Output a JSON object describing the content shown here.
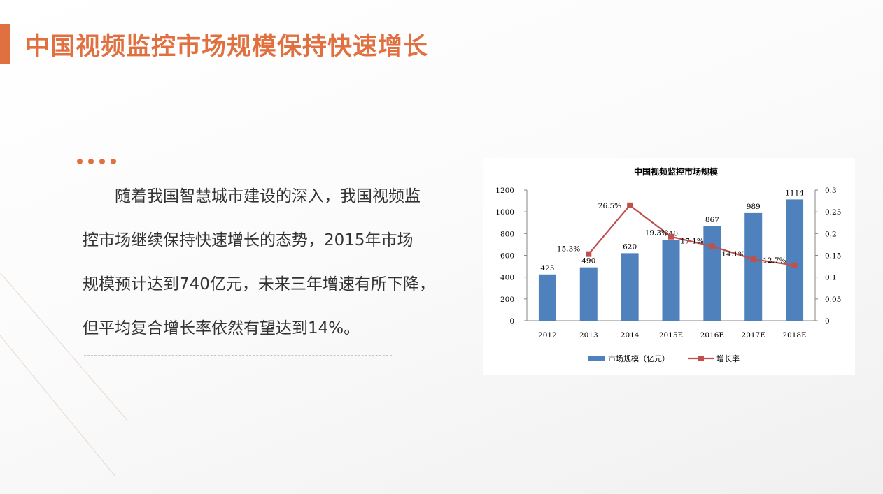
{
  "slide": {
    "title": "中国视频监控市场规模保持快速增长",
    "body_lines": [
      "随着我国智慧城市建设的深入，我国视频监",
      "控市场继续保持快速增长的态势，2015年市场",
      "规模预计达到740亿元，未来三年增速有所下降，",
      "但平均复合增长率依然有望达到14%。"
    ],
    "accent_color": "#e0703f"
  },
  "chart_data": {
    "type": "bar",
    "title": "中国视频监控市场规模",
    "categories": [
      "2012",
      "2013",
      "2014",
      "2015E",
      "2016E",
      "2017E",
      "2018E"
    ],
    "series": [
      {
        "name": "市场规模（亿元）",
        "type": "bar",
        "axis": "left",
        "color": "#4f81bd",
        "values": [
          425,
          490,
          620,
          740,
          867,
          989,
          1114
        ],
        "labels": [
          "425",
          "490",
          "620",
          "740",
          "867",
          "989",
          "1114"
        ]
      },
      {
        "name": "增长率",
        "type": "line",
        "axis": "right",
        "color": "#c0504d",
        "values": [
          null,
          0.153,
          0.265,
          0.193,
          0.171,
          0.141,
          0.127
        ],
        "labels": [
          null,
          "15.3%",
          "26.5%",
          "19.3%",
          "17.1%",
          "14.1%",
          "12.7%"
        ]
      }
    ],
    "y_left": {
      "range": [
        0,
        1200
      ],
      "ticks": [
        "0",
        "200",
        "400",
        "600",
        "800",
        "1000",
        "1200"
      ]
    },
    "y_right": {
      "range": [
        0,
        0.3
      ],
      "ticks": [
        "0",
        "0.05",
        "0.1",
        "0.15",
        "0.2",
        "0.25",
        "0.3"
      ]
    },
    "legend_position": "bottom",
    "grid": false
  }
}
